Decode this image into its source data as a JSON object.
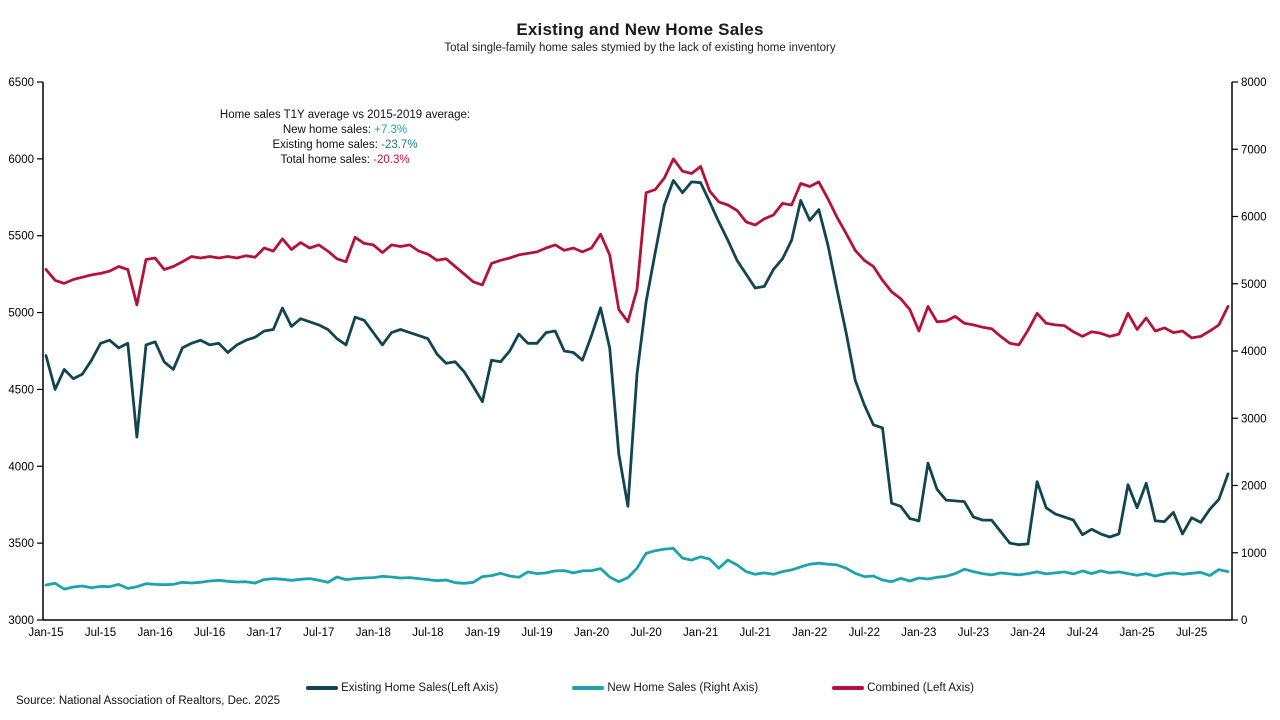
{
  "title": "Existing and New Home Sales",
  "subtitle": "Total single-family home sales stymied by the lack of existing home inventory",
  "source": "Source: National Association of Realtors, Dec. 2025",
  "annotation": {
    "heading": "Home sales T1Y average vs 2015-2019 average:",
    "lines": [
      {
        "label": "New home sales: ",
        "value": "+7.3%",
        "color": "#1ca3b0"
      },
      {
        "label": "Existing home sales: ",
        "value": "-23.7%",
        "color": "#187a89"
      },
      {
        "label": "Total home sales: ",
        "value": "-20.3%",
        "color": "#c41240"
      }
    ]
  },
  "chart_data": {
    "type": "line",
    "frequency": "monthly",
    "x_start": "Jan-15",
    "x_end": "Nov-25",
    "n_points": 131,
    "x_tick_every": 6,
    "x_tick_labels": [
      "Jan-15",
      "Jul-15",
      "Jan-16",
      "Jul-16",
      "Jan-17",
      "Jul-17",
      "Jan-18",
      "Jul-18",
      "Jan-19",
      "Jul-19",
      "Jan-20",
      "Jul-20",
      "Jan-21",
      "Jul-21",
      "Jan-22",
      "Jul-22",
      "Jan-23",
      "Jul-23",
      "Jan-24",
      "Jul-24",
      "Jan-25",
      "Jul-25"
    ],
    "left_axis": {
      "min": 3000,
      "max": 6500,
      "step": 500,
      "ticks": [
        "3000",
        "3500",
        "4000",
        "4500",
        "5000",
        "5500",
        "6000",
        "6500"
      ]
    },
    "right_axis": {
      "min": 0,
      "max": 8000,
      "step": 1000,
      "ticks": [
        "0",
        "1000",
        "2000",
        "3000",
        "4000",
        "5000",
        "6000",
        "7000",
        "8000"
      ]
    },
    "grid": false,
    "legend_position": "bottom",
    "series": [
      {
        "name": "Combined (Left Axis)",
        "axis": "left",
        "color": "#b51237",
        "values": [
          5280,
          5210,
          5190,
          5215,
          5230,
          5245,
          5255,
          5270,
          5300,
          5280,
          5050,
          5345,
          5355,
          5280,
          5300,
          5330,
          5365,
          5355,
          5365,
          5355,
          5365,
          5355,
          5370,
          5360,
          5420,
          5400,
          5480,
          5410,
          5455,
          5420,
          5440,
          5400,
          5350,
          5330,
          5490,
          5450,
          5440,
          5390,
          5440,
          5430,
          5440,
          5400,
          5380,
          5340,
          5350,
          5300,
          5250,
          5200,
          5180,
          5320,
          5340,
          5355,
          5375,
          5385,
          5395,
          5420,
          5440,
          5405,
          5420,
          5395,
          5420,
          5510,
          5375,
          5020,
          4940,
          5150,
          5780,
          5800,
          5875,
          6000,
          5920,
          5905,
          5950,
          5790,
          5720,
          5700,
          5665,
          5590,
          5570,
          5610,
          5635,
          5710,
          5700,
          5840,
          5820,
          5850,
          5740,
          5620,
          5515,
          5405,
          5340,
          5300,
          5210,
          5135,
          5090,
          5020,
          4880,
          5040,
          4940,
          4945,
          4975,
          4930,
          4920,
          4905,
          4895,
          4845,
          4800,
          4790,
          4885,
          4995,
          4930,
          4920,
          4915,
          4875,
          4845,
          4875,
          4865,
          4845,
          4860,
          4995,
          4890,
          4965,
          4880,
          4900,
          4870,
          4880,
          4835,
          4845,
          4880,
          4920,
          5040
        ]
      },
      {
        "name": "New Home Sales (Right Axis)",
        "axis": "right",
        "color": "#1ca3b0",
        "values": [
          520,
          545,
          460,
          490,
          505,
          480,
          500,
          495,
          530,
          470,
          495,
          540,
          530,
          525,
          530,
          560,
          550,
          560,
          580,
          590,
          575,
          565,
          570,
          548,
          600,
          615,
          605,
          590,
          605,
          615,
          590,
          560,
          640,
          600,
          615,
          625,
          630,
          650,
          640,
          625,
          630,
          615,
          600,
          585,
          595,
          555,
          545,
          560,
          645,
          660,
          695,
          655,
          635,
          715,
          690,
          700,
          730,
          735,
          700,
          730,
          735,
          765,
          640,
          570,
          630,
          770,
          990,
          1030,
          1055,
          1065,
          920,
          890,
          940,
          905,
          770,
          890,
          820,
          720,
          680,
          700,
          680,
          720,
          745,
          790,
          830,
          845,
          830,
          820,
          770,
          695,
          645,
          655,
          595,
          570,
          620,
          580,
          625,
          610,
          635,
          650,
          690,
          755,
          720,
          690,
          670,
          700,
          685,
          670,
          690,
          715,
          685,
          700,
          715,
          685,
          730,
          690,
          730,
          700,
          715,
          690,
          665,
          690,
          655,
          685,
          700,
          680,
          695,
          710,
          660,
          750,
          720
        ]
      },
      {
        "name": "Existing Home Sales(Left Axis)",
        "axis": "left",
        "color": "#11454f",
        "values": [
          4720,
          4500,
          4630,
          4570,
          4600,
          4690,
          4800,
          4820,
          4770,
          4800,
          4190,
          4790,
          4810,
          4680,
          4630,
          4770,
          4800,
          4820,
          4790,
          4800,
          4740,
          4790,
          4820,
          4840,
          4880,
          4890,
          5030,
          4910,
          4960,
          4940,
          4920,
          4890,
          4830,
          4790,
          4970,
          4950,
          4870,
          4790,
          4870,
          4890,
          4870,
          4850,
          4830,
          4730,
          4670,
          4680,
          4615,
          4520,
          4420,
          4690,
          4680,
          4750,
          4860,
          4800,
          4800,
          4870,
          4880,
          4750,
          4740,
          4690,
          4850,
          5030,
          4770,
          4080,
          3740,
          4600,
          5070,
          5390,
          5700,
          5860,
          5780,
          5850,
          5845,
          5720,
          5590,
          5470,
          5340,
          5250,
          5160,
          5170,
          5280,
          5350,
          5470,
          5730,
          5600,
          5670,
          5440,
          5150,
          4870,
          4560,
          4400,
          4270,
          4250,
          3760,
          3740,
          3660,
          3645,
          4020,
          3850,
          3780,
          3775,
          3770,
          3670,
          3650,
          3650,
          3575,
          3500,
          3490,
          3495,
          3900,
          3730,
          3690,
          3670,
          3650,
          3555,
          3590,
          3560,
          3540,
          3560,
          3880,
          3730,
          3890,
          3645,
          3640,
          3700,
          3560,
          3665,
          3635,
          3720,
          3785,
          3950
        ]
      }
    ],
    "legend_order": [
      2,
      1,
      0
    ]
  }
}
